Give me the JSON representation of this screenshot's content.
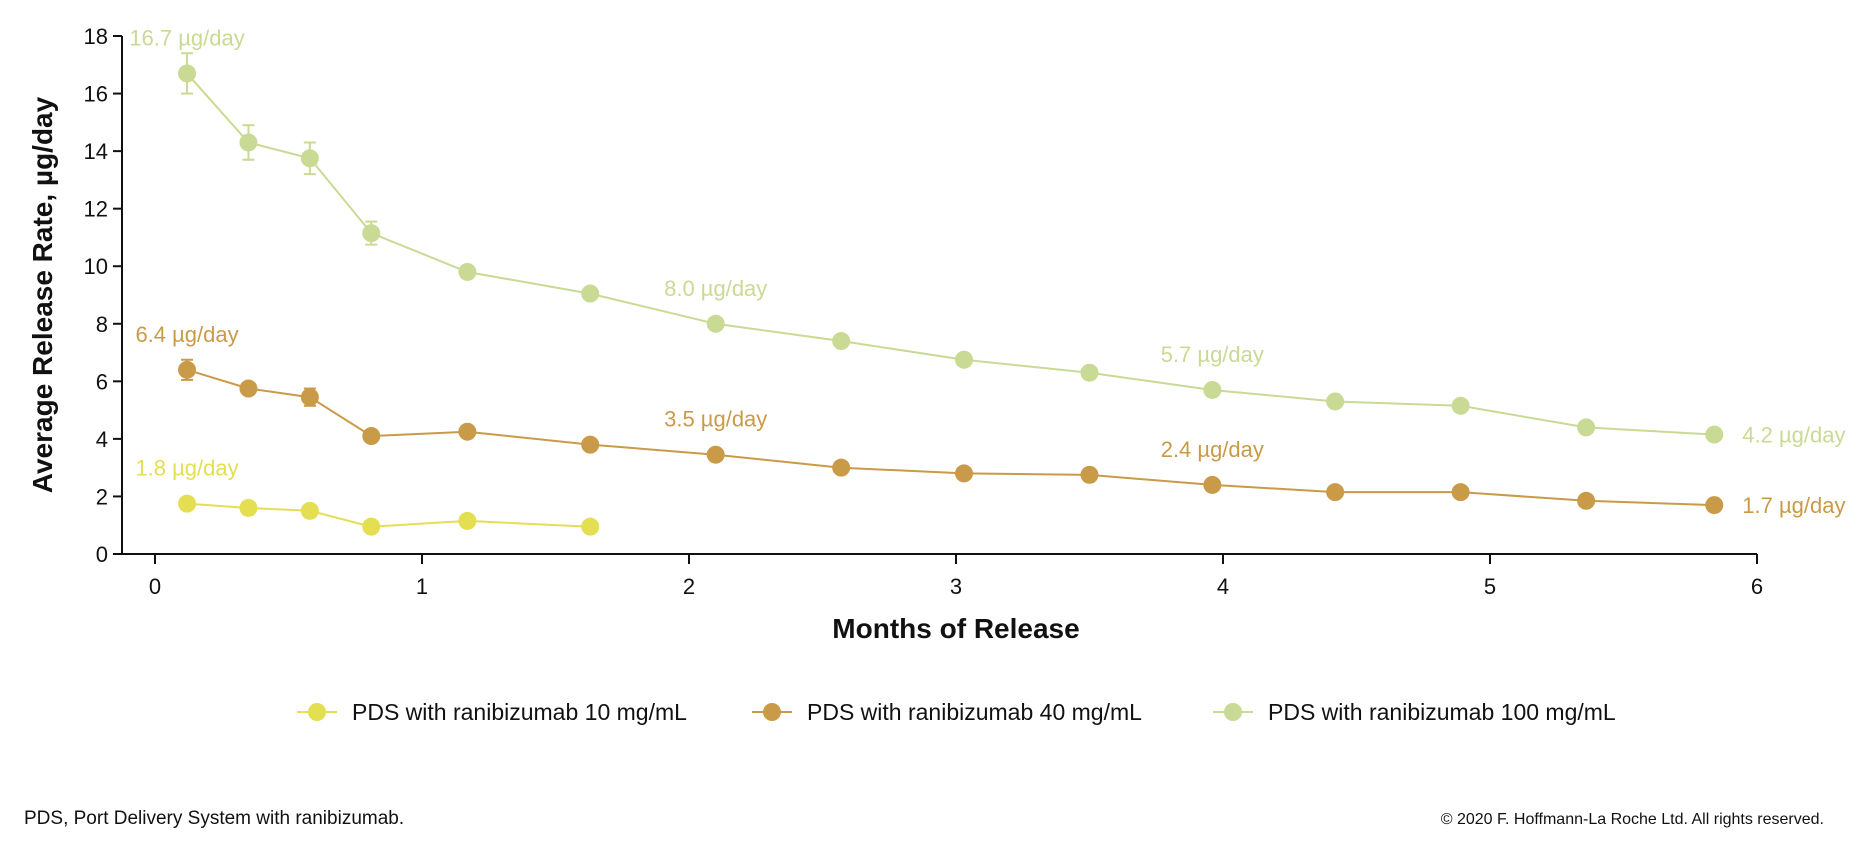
{
  "footnote": "PDS, Port Delivery System with ranibizumab.",
  "copyright": "© 2020 F. Hoffmann-La Roche Ltd. All rights reserved.",
  "chart_data": {
    "type": "line",
    "title": "",
    "xlabel": "Months of Release",
    "ylabel": "Average Release Rate, µg/day",
    "xlim": [
      0,
      6
    ],
    "ylim": [
      0,
      18
    ],
    "x_ticks": [
      0,
      1,
      2,
      3,
      4,
      5,
      6
    ],
    "y_ticks": [
      0,
      2,
      4,
      6,
      8,
      10,
      12,
      14,
      16,
      18
    ],
    "grid": false,
    "legend_position": "bottom",
    "series": [
      {
        "name": "PDS with ranibizumab 10 mg/mL",
        "color": "#e3de52",
        "x": [
          0.12,
          0.35,
          0.58,
          0.81,
          1.17,
          1.63
        ],
        "y": [
          1.75,
          1.6,
          1.5,
          0.95,
          1.15,
          0.95
        ],
        "errors": [
          0.15,
          0,
          0,
          0,
          0,
          0
        ],
        "labels": [
          {
            "x": 0.12,
            "y": 1.75,
            "text": "1.8 µg/day",
            "pos": "above"
          }
        ]
      },
      {
        "name": "PDS with ranibizumab 40 mg/mL",
        "color": "#c99a48",
        "x": [
          0.12,
          0.35,
          0.58,
          0.81,
          1.17,
          1.63,
          2.1,
          2.57,
          3.03,
          3.5,
          3.96,
          4.42,
          4.89,
          5.36,
          5.84
        ],
        "y": [
          6.4,
          5.75,
          5.45,
          4.1,
          4.25,
          3.8,
          3.45,
          3.0,
          2.8,
          2.75,
          2.4,
          2.15,
          2.15,
          1.85,
          1.7
        ],
        "errors": [
          0.35,
          0.15,
          0.3,
          0.1,
          0,
          0,
          0,
          0,
          0,
          0,
          0,
          0,
          0,
          0,
          0
        ],
        "labels": [
          {
            "x": 0.12,
            "y": 6.4,
            "text": "6.4 µg/day",
            "pos": "above"
          },
          {
            "x": 2.1,
            "y": 3.45,
            "text": "3.5 µg/day",
            "pos": "above"
          },
          {
            "x": 3.96,
            "y": 2.4,
            "text": "2.4 µg/day",
            "pos": "above"
          },
          {
            "x": 5.84,
            "y": 1.7,
            "text": "1.7 µg/day",
            "pos": "right"
          }
        ]
      },
      {
        "name": "PDS with ranibizumab 100 mg/mL",
        "color": "#c8da94",
        "x": [
          0.12,
          0.35,
          0.58,
          0.81,
          1.17,
          1.63,
          2.1,
          2.57,
          3.03,
          3.5,
          3.96,
          4.42,
          4.89,
          5.36,
          5.84
        ],
        "y": [
          16.7,
          14.3,
          13.75,
          11.15,
          9.8,
          9.05,
          8.0,
          7.4,
          6.75,
          6.3,
          5.7,
          5.3,
          5.15,
          4.4,
          4.15
        ],
        "errors": [
          0.7,
          0.6,
          0.55,
          0.4,
          0.2,
          0.2,
          0,
          0,
          0,
          0,
          0,
          0,
          0,
          0,
          0
        ],
        "labels": [
          {
            "x": 0.12,
            "y": 16.7,
            "text": "16.7 µg/day",
            "pos": "above"
          },
          {
            "x": 2.1,
            "y": 8.0,
            "text": "8.0 µg/day",
            "pos": "above"
          },
          {
            "x": 3.96,
            "y": 5.7,
            "text": "5.7 µg/day",
            "pos": "above"
          },
          {
            "x": 5.84,
            "y": 4.15,
            "text": "4.2 µg/day",
            "pos": "right"
          }
        ]
      }
    ]
  }
}
